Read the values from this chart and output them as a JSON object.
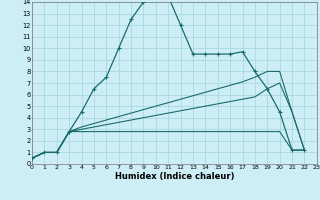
{
  "xlabel": "Humidex (Indice chaleur)",
  "background_color": "#ceeef5",
  "grid_color": "#aad8e0",
  "line_color": "#1a6b6b",
  "xlim": [
    0,
    23
  ],
  "ylim": [
    0,
    14
  ],
  "xticks": [
    0,
    1,
    2,
    3,
    4,
    5,
    6,
    7,
    8,
    9,
    10,
    11,
    12,
    13,
    14,
    15,
    16,
    17,
    18,
    19,
    20,
    21,
    22,
    23
  ],
  "yticks": [
    0,
    1,
    2,
    3,
    4,
    5,
    6,
    7,
    8,
    9,
    10,
    11,
    12,
    13,
    14
  ],
  "line1_x": [
    0,
    1,
    2,
    3,
    4,
    5,
    6,
    7,
    8,
    9,
    10,
    11,
    12,
    13,
    14,
    15,
    16,
    17,
    18,
    19,
    20,
    21,
    22
  ],
  "line1_y": [
    0.5,
    1.0,
    1.0,
    2.8,
    4.5,
    6.5,
    7.5,
    10.0,
    12.5,
    14.0,
    14.5,
    14.5,
    12.0,
    9.5,
    9.5,
    9.5,
    9.5,
    9.7,
    8.0,
    6.5,
    4.5,
    1.2,
    1.2
  ],
  "line2_x": [
    0,
    1,
    2,
    3,
    4,
    5,
    6,
    7,
    8,
    9,
    10,
    11,
    12,
    13,
    14,
    15,
    16,
    17,
    18,
    19,
    20,
    21,
    22
  ],
  "line2_y": [
    0.5,
    1.0,
    1.0,
    2.8,
    2.8,
    2.8,
    2.8,
    2.8,
    2.8,
    2.8,
    2.8,
    2.8,
    2.8,
    2.8,
    2.8,
    2.8,
    2.8,
    2.8,
    2.8,
    2.8,
    2.8,
    1.2,
    1.2
  ],
  "line3_x": [
    0,
    1,
    2,
    3,
    4,
    5,
    6,
    7,
    8,
    9,
    10,
    11,
    12,
    13,
    14,
    15,
    16,
    17,
    18,
    19,
    20,
    21,
    22
  ],
  "line3_y": [
    0.5,
    1.0,
    1.0,
    2.8,
    3.0,
    3.2,
    3.4,
    3.6,
    3.8,
    4.0,
    4.2,
    4.4,
    4.6,
    4.8,
    5.0,
    5.2,
    5.4,
    5.6,
    5.8,
    6.5,
    7.0,
    4.5,
    1.2
  ],
  "line4_x": [
    0,
    1,
    2,
    3,
    4,
    5,
    6,
    7,
    8,
    9,
    10,
    11,
    12,
    13,
    14,
    15,
    16,
    17,
    18,
    19,
    20,
    21,
    22
  ],
  "line4_y": [
    0.5,
    1.0,
    1.0,
    2.8,
    3.2,
    3.5,
    3.8,
    4.1,
    4.4,
    4.7,
    5.0,
    5.3,
    5.6,
    5.9,
    6.2,
    6.5,
    6.8,
    7.1,
    7.5,
    8.0,
    8.0,
    4.5,
    1.2
  ]
}
